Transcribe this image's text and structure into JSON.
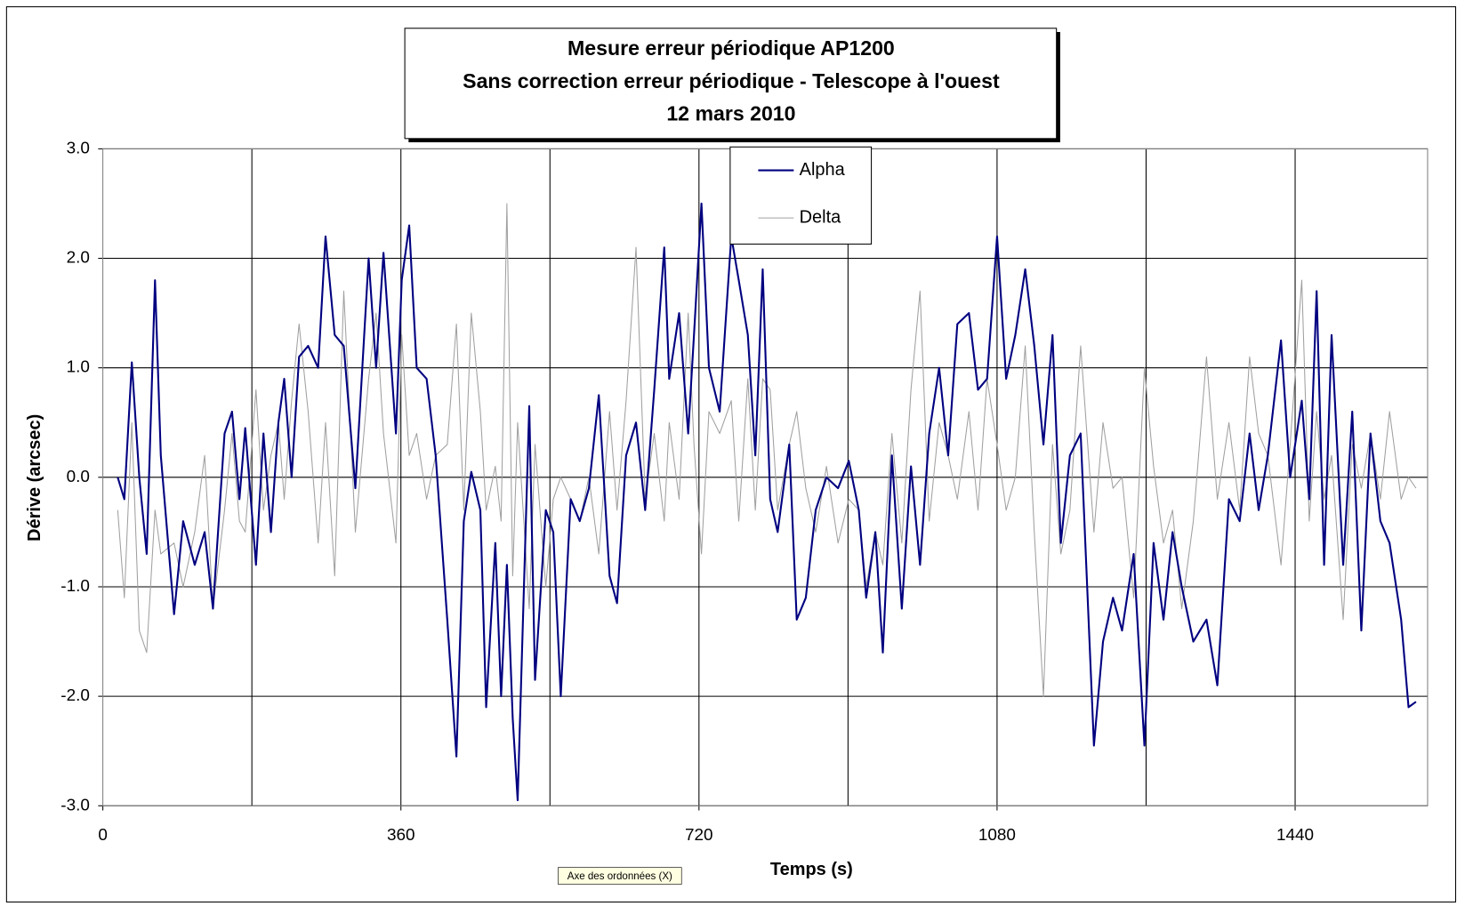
{
  "chart_data": {
    "type": "line",
    "title": [
      "Mesure erreur périodique AP1200",
      "Sans correction erreur périodique - Telescope à l'ouest",
      "12 mars 2010"
    ],
    "xlabel": "Temps (s)",
    "ylabel": "Dérive (arcsec)",
    "tooltip": "Axe des ordonnées (X)",
    "legend": "top",
    "grid": true,
    "xlim": [
      0,
      1600
    ],
    "xticks": [
      0,
      360,
      720,
      1080,
      1440
    ],
    "xgrid": [
      180,
      360,
      540,
      720,
      900,
      1080,
      1260,
      1440
    ],
    "ylim": [
      -3,
      3
    ],
    "yticks": [
      {
        "value": -3,
        "label": "-3.0"
      },
      {
        "value": -2,
        "label": "-2.0"
      },
      {
        "value": -1,
        "label": "-1.0"
      },
      {
        "value": 0,
        "label": "0.0"
      },
      {
        "value": 1,
        "label": "1.0"
      },
      {
        "value": 2,
        "label": "2.0"
      },
      {
        "value": 3,
        "label": "3.0"
      }
    ],
    "x": [
      18,
      26,
      35,
      44,
      53,
      63,
      70,
      86,
      97,
      111,
      123,
      133,
      147,
      156,
      165,
      172,
      185,
      194,
      203,
      212,
      219,
      228,
      237,
      248,
      260,
      269,
      280,
      291,
      305,
      321,
      330,
      339,
      354,
      361,
      370,
      379,
      391,
      402,
      416,
      427,
      436,
      445,
      456,
      463,
      474,
      481,
      488,
      495,
      501,
      515,
      522,
      535,
      544,
      553,
      565,
      576,
      587,
      599,
      612,
      621,
      632,
      644,
      655,
      666,
      678,
      684,
      696,
      707,
      714,
      723,
      732,
      745,
      759,
      768,
      779,
      788,
      797,
      806,
      815,
      829,
      838,
      849,
      861,
      874,
      888,
      901,
      913,
      922,
      933,
      942,
      953,
      965,
      976,
      987,
      998,
      1010,
      1021,
      1032,
      1046,
      1057,
      1068,
      1080,
      1091,
      1102,
      1114,
      1125,
      1136,
      1147,
      1157,
      1168,
      1181,
      1197,
      1208,
      1220,
      1231,
      1245,
      1258,
      1269,
      1281,
      1292,
      1303,
      1317,
      1333,
      1346,
      1360,
      1373,
      1385,
      1396,
      1407,
      1423,
      1434,
      1448,
      1457,
      1466,
      1475,
      1484,
      1498,
      1509,
      1520,
      1531,
      1543,
      1554,
      1568,
      1577,
      1586
    ],
    "series": [
      {
        "name": "Alpha",
        "color": "#000080",
        "values": [
          0.0,
          -0.2,
          1.05,
          0.0,
          -0.7,
          1.8,
          0.2,
          -1.25,
          -0.4,
          -0.8,
          -0.5,
          -1.2,
          0.4,
          0.6,
          -0.2,
          0.45,
          -0.8,
          0.4,
          -0.5,
          0.5,
          0.9,
          0.0,
          1.1,
          1.2,
          1.0,
          2.2,
          1.3,
          1.2,
          -0.1,
          2.0,
          1.0,
          2.05,
          0.4,
          1.8,
          2.3,
          1.0,
          0.9,
          0.2,
          -1.3,
          -2.55,
          -0.4,
          0.05,
          -0.3,
          -2.1,
          -0.6,
          -2.0,
          -0.8,
          -2.2,
          -2.95,
          0.65,
          -1.85,
          -0.3,
          -0.5,
          -2.0,
          -0.2,
          -0.4,
          -0.1,
          0.75,
          -0.9,
          -1.15,
          0.2,
          0.5,
          -0.3,
          0.8,
          2.1,
          0.9,
          1.5,
          0.4,
          1.3,
          2.5,
          1.0,
          0.6,
          2.2,
          1.8,
          1.3,
          0.2,
          1.9,
          -0.2,
          -0.5,
          0.3,
          -1.3,
          -1.1,
          -0.3,
          0.0,
          -0.1,
          0.15,
          -0.3,
          -1.1,
          -0.5,
          -1.6,
          0.2,
          -1.2,
          0.1,
          -0.8,
          0.4,
          1.0,
          0.2,
          1.4,
          1.5,
          0.8,
          0.9,
          2.2,
          0.9,
          1.3,
          1.9,
          1.2,
          0.3,
          1.3,
          -0.6,
          0.2,
          0.4,
          -2.45,
          -1.5,
          -1.1,
          -1.4,
          -0.7,
          -2.45,
          -0.6,
          -1.3,
          -0.5,
          -1.0,
          -1.5,
          -1.3,
          -1.9,
          -0.2,
          -0.4,
          0.4,
          -0.3,
          0.2,
          1.25,
          0.0,
          0.7,
          -0.2,
          1.7,
          -0.8,
          1.3,
          -0.8,
          0.6,
          -1.4,
          0.4,
          -0.4,
          -0.6,
          -1.3,
          -2.1,
          -2.05
        ]
      },
      {
        "name": "Delta",
        "color": "#a0a0a0",
        "values": [
          -0.3,
          -1.1,
          0.5,
          -1.4,
          -1.6,
          -0.3,
          -0.7,
          -0.6,
          -1.0,
          -0.5,
          0.2,
          -1.2,
          -0.3,
          0.4,
          -0.4,
          -0.5,
          0.8,
          -0.3,
          0.2,
          0.5,
          -0.2,
          0.7,
          1.4,
          0.6,
          -0.6,
          0.5,
          -0.9,
          1.7,
          -0.5,
          0.9,
          1.5,
          0.4,
          -0.6,
          1.3,
          0.2,
          0.4,
          -0.2,
          0.2,
          0.3,
          1.4,
          -0.3,
          1.5,
          0.6,
          -0.3,
          0.1,
          -0.4,
          2.5,
          -0.9,
          0.5,
          -1.2,
          0.3,
          -1.0,
          -0.2,
          0.0,
          -0.2,
          -0.4,
          0.0,
          -0.7,
          0.6,
          -0.3,
          0.7,
          2.1,
          -0.2,
          0.4,
          -0.4,
          0.5,
          -0.2,
          1.5,
          0.3,
          -0.7,
          0.6,
          0.4,
          0.7,
          -0.4,
          0.9,
          -0.3,
          0.9,
          0.8,
          -0.3,
          0.3,
          0.6,
          -0.1,
          -0.5,
          0.1,
          -0.6,
          -0.2,
          -0.3,
          -1.0,
          -0.5,
          -0.8,
          0.4,
          -0.6,
          0.8,
          1.7,
          -0.4,
          0.5,
          0.2,
          -0.2,
          0.6,
          -0.3,
          0.9,
          0.3,
          -0.3,
          0.0,
          1.2,
          -0.5,
          -2.0,
          0.3,
          -0.7,
          -0.3,
          1.2,
          -0.5,
          0.5,
          -0.1,
          0.0,
          -1.1,
          1.0,
          0.1,
          -0.6,
          -0.3,
          -1.2,
          -0.4,
          1.1,
          -0.2,
          0.5,
          -0.3,
          1.1,
          0.4,
          0.2,
          -0.8,
          0.3,
          1.8,
          -0.4,
          0.6,
          -0.2,
          0.2,
          -1.3,
          0.3,
          -0.1,
          0.4,
          -0.2,
          0.6,
          -0.2,
          0.0,
          -0.1
        ]
      }
    ]
  }
}
